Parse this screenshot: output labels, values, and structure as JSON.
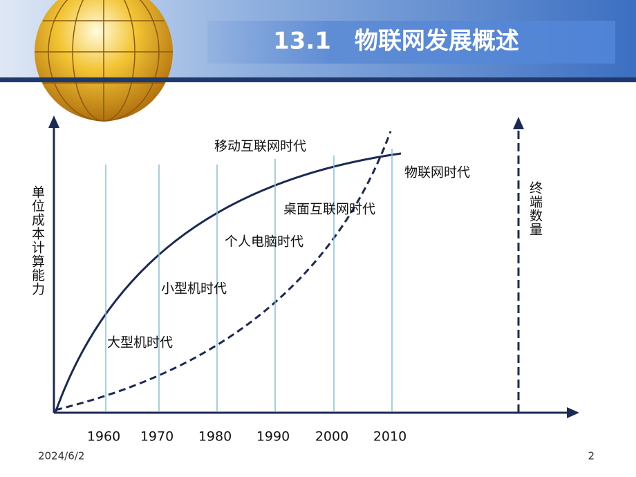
{
  "header": {
    "title": "13.1　物联网发展概述"
  },
  "diagram": {
    "y_axis_label": "单位成本计算能力",
    "right_axis_label": "终端数量",
    "x_labels": [
      "1960",
      "1970",
      "1980",
      "1990",
      "2000",
      "2010"
    ],
    "eras": [
      "大型机时代",
      "小型机时代",
      "个人电脑时代",
      "桌面互联网时代",
      "移动互联网时代",
      "物联网时代"
    ]
  },
  "footer": {
    "date": "2024/6/2",
    "page": "2"
  }
}
